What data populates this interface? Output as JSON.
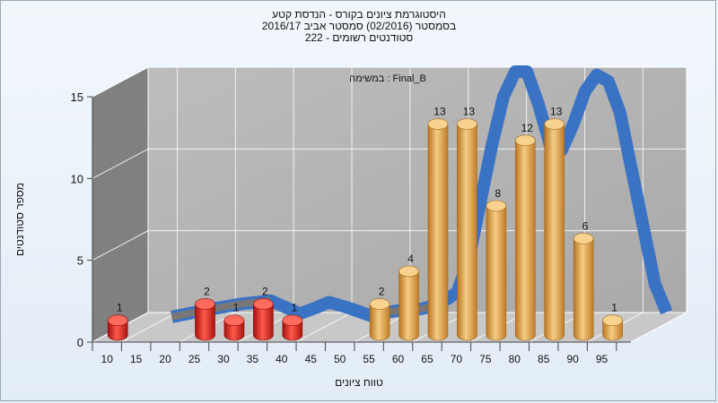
{
  "title_lines": [
    "היסטוגרמת ציונים בקורס - הנדסת קטע",
    "בסמסטר  (02/2016)  סמסטר אביב 2016/17",
    "סטודנטים רשומים - 222"
  ],
  "inner_label": "במשימה : Final_B",
  "chart_data": {
    "type": "bar",
    "title": "היסטוגרמת ציונים בקורס - הנדסת קטע",
    "xlabel": "טווח ציונים",
    "ylabel": "מספר סטודנטים",
    "ylim": [
      0,
      15
    ],
    "yticks": [
      0,
      5,
      10,
      15
    ],
    "xticks": [
      "10",
      "15",
      "20",
      "25",
      "30",
      "35",
      "40",
      "45",
      "50",
      "55",
      "60",
      "65",
      "70",
      "75",
      "80",
      "85",
      "90",
      "95"
    ],
    "categories": [
      "10",
      "25",
      "30",
      "35",
      "40",
      "55",
      "60",
      "65",
      "70",
      "75",
      "80",
      "85",
      "90",
      "95"
    ],
    "values": [
      1,
      2,
      1,
      2,
      1,
      2,
      4,
      13,
      13,
      8,
      12,
      13,
      6,
      1
    ],
    "fail_threshold": 55,
    "colors": {
      "fail": "#e0211d",
      "pass": "#e8a84a",
      "curve": "#3a72c4",
      "curve_shadow": "#777777",
      "wall": "#808080",
      "floor": "#c8c8c8"
    },
    "distribution_curve": {
      "x": [
        13,
        20,
        25,
        30,
        35,
        38,
        40,
        43,
        47,
        52,
        56,
        59,
        62,
        64,
        66,
        68,
        70,
        72,
        74,
        76,
        78,
        80,
        82,
        84,
        86,
        88,
        90,
        92,
        94,
        96,
        98
      ],
      "y": [
        0,
        0.5,
        0.8,
        1.0,
        0.2,
        0.6,
        0.9,
        0.6,
        0.1,
        0.4,
        0.5,
        0.8,
        1.5,
        3.5,
        7.0,
        10.5,
        13.5,
        15.0,
        15.0,
        13.0,
        10.5,
        10.2,
        11.8,
        13.8,
        14.8,
        14.4,
        12.5,
        9.0,
        5.5,
        2.0,
        0.3
      ]
    }
  }
}
